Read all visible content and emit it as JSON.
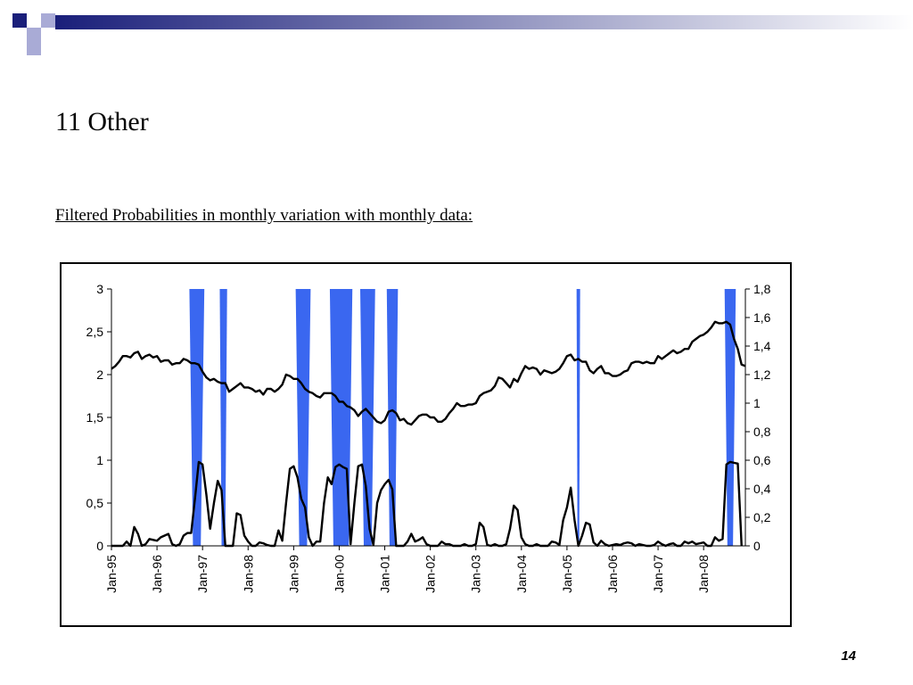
{
  "slide": {
    "title": "11 Other",
    "subtitle": "Filtered Probabilities in monthly variation with monthly data:",
    "page_number": "14"
  },
  "colors": {
    "shade": "#3a67f0",
    "line": "#000000",
    "header_dark": "#1a1f7a",
    "header_light": "#a9abd6"
  },
  "chart_data": {
    "type": "line",
    "title": "",
    "grid": false,
    "legend": "none",
    "x": {
      "start": "Jan-95",
      "months": 168,
      "tick_labels": [
        "Jan-95",
        "Jan-96",
        "Jan-97",
        "Jan-98",
        "Jan-99",
        "Jan-00",
        "Jan-01",
        "Jan-02",
        "Jan-03",
        "Jan-04",
        "Jan-05",
        "Jan-06",
        "Jan-07",
        "Jan-08"
      ]
    },
    "left_axis": {
      "min": 0,
      "max": 3,
      "tick_labels": [
        "0",
        "0,5",
        "1",
        "1,5",
        "2",
        "2,5",
        "3"
      ],
      "tick_values": [
        0,
        0.5,
        1,
        1.5,
        2,
        2.5,
        3
      ]
    },
    "right_axis": {
      "min": 0,
      "max": 1.8,
      "tick_labels": [
        "0",
        "0,2",
        "0,4",
        "0,6",
        "0,8",
        "1",
        "1,2",
        "1,4",
        "1,6",
        "1,8"
      ],
      "tick_values": [
        0,
        0.2,
        0.4,
        0.6,
        0.8,
        1,
        1.2,
        1.4,
        1.6,
        1.8
      ]
    },
    "regime_shading": {
      "axis": "left",
      "periods": [
        {
          "start": "Oct-96",
          "end": "Jan-97"
        },
        {
          "start": "Jun-97",
          "end": "Jul-97"
        },
        {
          "start": "Feb-99",
          "end": "May-99"
        },
        {
          "start": "Nov-99",
          "end": "Apr-00"
        },
        {
          "start": "Jul-00",
          "end": "Oct-00"
        },
        {
          "start": "Feb-01",
          "end": "Apr-01"
        },
        {
          "start": "Apr-05",
          "end": "Apr-05"
        },
        {
          "start": "Jul-08",
          "end": "Sep-08"
        }
      ]
    },
    "series": [
      {
        "axis": "right",
        "values": [
          1.24,
          1.26,
          1.29,
          1.33,
          1.33,
          1.32,
          1.35,
          1.36,
          1.31,
          1.33,
          1.34,
          1.32,
          1.33,
          1.29,
          1.3,
          1.3,
          1.27,
          1.28,
          1.28,
          1.31,
          1.3,
          1.28,
          1.28,
          1.27,
          1.22,
          1.18,
          1.16,
          1.17,
          1.15,
          1.14,
          1.14,
          1.08,
          1.1,
          1.12,
          1.14,
          1.11,
          1.11,
          1.1,
          1.08,
          1.09,
          1.06,
          1.1,
          1.1,
          1.08,
          1.1,
          1.13,
          1.2,
          1.19,
          1.17,
          1.17,
          1.14,
          1.1,
          1.08,
          1.07,
          1.05,
          1.04,
          1.07,
          1.07,
          1.07,
          1.05,
          1.01,
          1.01,
          0.98,
          0.97,
          0.95,
          0.91,
          0.94,
          0.96,
          0.93,
          0.9,
          0.87,
          0.86,
          0.88,
          0.94,
          0.95,
          0.93,
          0.88,
          0.89,
          0.86,
          0.85,
          0.88,
          0.91,
          0.92,
          0.92,
          0.9,
          0.9,
          0.87,
          0.87,
          0.89,
          0.93,
          0.96,
          1,
          0.98,
          0.98,
          0.99,
          0.99,
          1,
          1.05,
          1.07,
          1.08,
          1.09,
          1.12,
          1.18,
          1.17,
          1.14,
          1.11,
          1.17,
          1.15,
          1.21,
          1.26,
          1.24,
          1.25,
          1.24,
          1.2,
          1.23,
          1.22,
          1.21,
          1.22,
          1.24,
          1.28,
          1.33,
          1.34,
          1.3,
          1.31,
          1.29,
          1.29,
          1.23,
          1.21,
          1.24,
          1.26,
          1.21,
          1.21,
          1.19,
          1.19,
          1.2,
          1.22,
          1.23,
          1.28,
          1.29,
          1.29,
          1.28,
          1.29,
          1.28,
          1.28,
          1.33,
          1.31,
          1.33,
          1.35,
          1.37,
          1.35,
          1.36,
          1.38,
          1.38,
          1.43,
          1.45,
          1.47,
          1.48,
          1.5,
          1.53,
          1.57,
          1.56,
          1.56,
          1.57,
          1.55,
          1.45,
          1.38,
          1.27,
          1.26
        ],
        "note_dates": "monthly from Jan-95"
      },
      {
        "axis": "left",
        "values": [
          0,
          0,
          0,
          0,
          0.05,
          0,
          0.22,
          0.14,
          0,
          0.02,
          0.08,
          0.07,
          0.06,
          0.1,
          0.12,
          0.14,
          0.02,
          0,
          0.02,
          0.12,
          0.15,
          0.15,
          0.55,
          0.98,
          0.95,
          0.6,
          0.2,
          0.5,
          0.76,
          0.65,
          0,
          0,
          0,
          0.38,
          0.36,
          0.12,
          0.05,
          0,
          0,
          0.04,
          0.03,
          0.01,
          0,
          0,
          0.18,
          0.06,
          0.5,
          0.9,
          0.93,
          0.8,
          0.55,
          0.45,
          0.1,
          0,
          0.05,
          0.05,
          0.5,
          0.8,
          0.72,
          0.92,
          0.95,
          0.92,
          0.9,
          0.02,
          0.5,
          0.93,
          0.95,
          0.7,
          0.2,
          0.01,
          0.5,
          0.65,
          0.72,
          0.77,
          0.66,
          0,
          0,
          0,
          0.05,
          0.14,
          0.05,
          0.07,
          0.1,
          0.02,
          0,
          0,
          0,
          0.05,
          0.02,
          0.02,
          0,
          0,
          0,
          0.02,
          0,
          0,
          0.02,
          0.27,
          0.22,
          0.01,
          0,
          0.02,
          0,
          0,
          0.02,
          0.2,
          0.47,
          0.42,
          0.1,
          0.02,
          0,
          0,
          0.02,
          0,
          0,
          0,
          0.05,
          0.04,
          0.01,
          0.3,
          0.45,
          0.68,
          0.3,
          0,
          0.12,
          0.27,
          0.25,
          0.04,
          0,
          0.06,
          0.02,
          0,
          0.01,
          0.02,
          0.01,
          0.03,
          0.04,
          0.03,
          0,
          0.02,
          0.01,
          0,
          0,
          0.01,
          0.05,
          0.02,
          0,
          0.02,
          0.03,
          0,
          0,
          0.05,
          0.03,
          0.05,
          0.02,
          0.03,
          0.04,
          0,
          0,
          0.1,
          0.06,
          0.08,
          0.95,
          0.98,
          0.97,
          0.96,
          0
        ]
      }
    ]
  }
}
